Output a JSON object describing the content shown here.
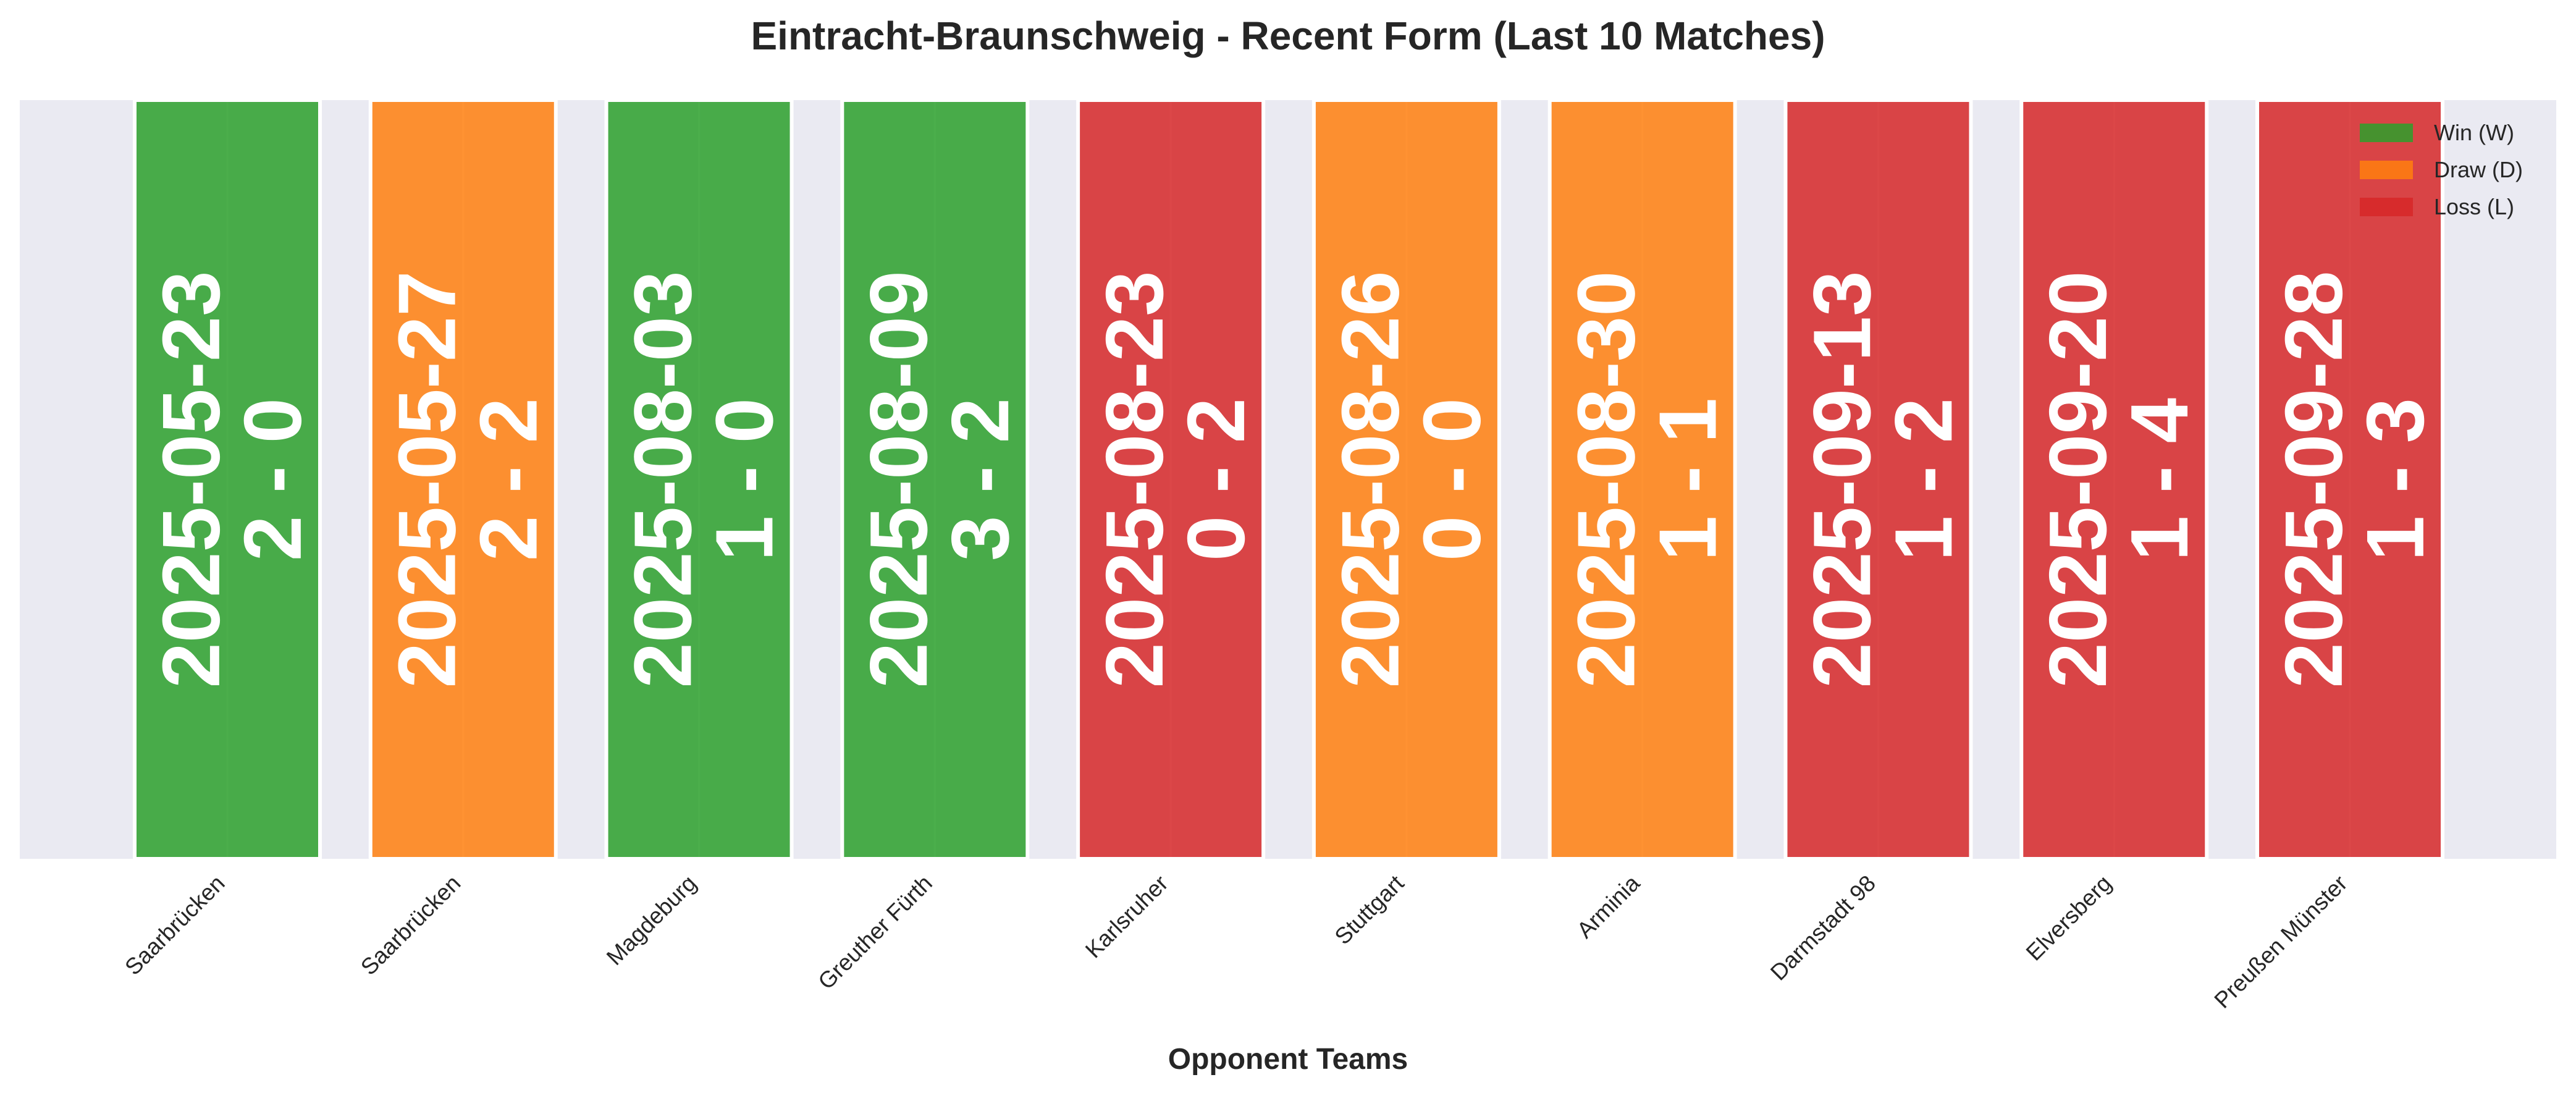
{
  "chart_data": {
    "type": "bar",
    "title": "Eintracht-Braunschweig - Recent Form (Last 10 Matches)",
    "xlabel": "Opponent Teams",
    "ylabel": "",
    "ylim": [
      0,
      1
    ],
    "grid": true,
    "legend_position": "top-right",
    "colors": {
      "W": "#2ca02c",
      "D": "#ff7f0e",
      "L": "#d62728",
      "background": "#eaeaf2"
    },
    "legend": [
      {
        "result": "W",
        "label": "Win (W)"
      },
      {
        "result": "D",
        "label": "Draw (D)"
      },
      {
        "result": "L",
        "label": "Loss (L)"
      }
    ],
    "categories": [
      "Saarbrücken",
      "Saarbrücken",
      "Magdeburg",
      "Greuther Fürth",
      "Karlsruher",
      "Stuttgart",
      "Arminia",
      "Darmstadt 98",
      "Elversberg",
      "Preußen Münster"
    ],
    "matches": [
      {
        "opponent": "Saarbrücken",
        "date": "2025-05-23",
        "score": "2 - 0",
        "result": "W",
        "value": 1
      },
      {
        "opponent": "Saarbrücken",
        "date": "2025-05-27",
        "score": "2 - 2",
        "result": "D",
        "value": 1
      },
      {
        "opponent": "Magdeburg",
        "date": "2025-08-03",
        "score": "1 - 0",
        "result": "W",
        "value": 1
      },
      {
        "opponent": "Greuther Fürth",
        "date": "2025-08-09",
        "score": "3 - 2",
        "result": "W",
        "value": 1
      },
      {
        "opponent": "Karlsruher",
        "date": "2025-08-23",
        "score": "0 - 2",
        "result": "L",
        "value": 1
      },
      {
        "opponent": "Stuttgart",
        "date": "2025-08-26",
        "score": "0 - 0",
        "result": "D",
        "value": 1
      },
      {
        "opponent": "Arminia",
        "date": "2025-08-30",
        "score": "1 - 1",
        "result": "D",
        "value": 1
      },
      {
        "opponent": "Darmstadt 98",
        "date": "2025-09-13",
        "score": "1 - 2",
        "result": "L",
        "value": 1
      },
      {
        "opponent": "Elversberg",
        "date": "2025-09-20",
        "score": "1 - 4",
        "result": "L",
        "value": 1
      },
      {
        "opponent": "Preußen Münster",
        "date": "2025-09-28",
        "score": "1 - 3",
        "result": "L",
        "value": 1
      }
    ]
  }
}
